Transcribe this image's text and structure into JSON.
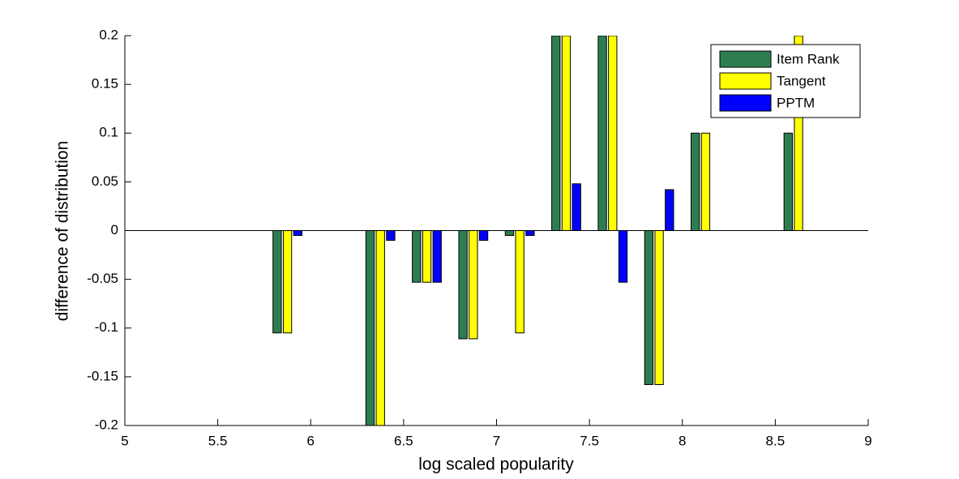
{
  "chart_data": {
    "type": "bar",
    "x_label": "log scaled popularity",
    "y_label": "difference of distribution",
    "x": [
      5.875,
      6.375,
      6.625,
      6.875,
      7.125,
      7.375,
      7.625,
      7.875,
      8.125,
      8.625
    ],
    "series": [
      {
        "name": "Item Rank",
        "color": "#2e7d50",
        "values": [
          -0.105,
          -0.2,
          -0.053,
          -0.111,
          -0.005,
          0.2,
          0.2,
          -0.158,
          0.1,
          0.1
        ]
      },
      {
        "name": "Tangent",
        "color": "#ffff00",
        "values": [
          -0.105,
          -0.2,
          -0.053,
          -0.111,
          -0.105,
          0.2,
          0.2,
          -0.158,
          0.1,
          0.2
        ]
      },
      {
        "name": "PPTM",
        "color": "#0000ff",
        "values": [
          -0.005,
          -0.01,
          -0.053,
          -0.01,
          -0.005,
          0.048,
          -0.053,
          0.042,
          0,
          0
        ]
      }
    ],
    "xlim": [
      5,
      9
    ],
    "ylim": [
      -0.2,
      0.2
    ],
    "xticks": [
      5,
      5.5,
      6,
      6.5,
      7,
      7.5,
      8,
      8.5,
      9
    ],
    "yticks": [
      -0.2,
      -0.15,
      -0.1,
      -0.05,
      0,
      0.05,
      0.1,
      0.15,
      0.2
    ],
    "legend": "upper right"
  }
}
